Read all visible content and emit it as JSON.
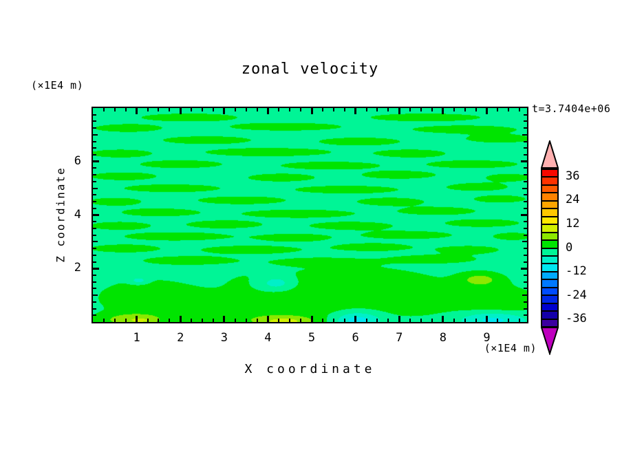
{
  "window": {
    "background": "#ffffff"
  },
  "chart_data": {
    "type": "filled_contour",
    "title": "zonal velocity",
    "time_label": "t=3.7404e+06",
    "x_axis": {
      "title": "X coordinate",
      "units_label": "(×1E4 m)",
      "min": 0,
      "max": 9.92,
      "labeled_ticks": [
        1,
        2,
        3,
        4,
        5,
        6,
        7,
        8,
        9
      ],
      "minor_tick_step": 0.25
    },
    "z_axis": {
      "title": "Z coordinate",
      "units_label": "(×1E4 m)",
      "min": 0,
      "max": 8,
      "labeled_ticks": [
        2,
        4,
        6
      ],
      "medium_ticks": [
        1,
        3,
        5,
        7
      ],
      "minor_tick_step": 0.25
    },
    "colorbar": {
      "level_min": -40,
      "level_max": 40,
      "level_step": 4,
      "labels": [
        36,
        24,
        12,
        0,
        -12,
        -24,
        -36
      ],
      "segment_colors_low_to_high": [
        "#3c00a0",
        "#1400aa",
        "#0000cd",
        "#0028e6",
        "#004cff",
        "#0078ff",
        "#00aaff",
        "#00e6f0",
        "#00f0c8",
        "#00f596",
        "#00e400",
        "#8ce800",
        "#d2f000",
        "#ffe800",
        "#ffc800",
        "#ffa500",
        "#ff8200",
        "#ff5a00",
        "#ff3200",
        "#f80800"
      ],
      "under_color": "#be00be",
      "over_color": "#ffb0b0",
      "outline_color": "#000000"
    },
    "field": {
      "description": "velocity field = base_value + sum of gaussian features; color = contour band of value",
      "base_value": -2,
      "feature_format": [
        "x",
        "z",
        "x_radius",
        "z_radius",
        "amplitude"
      ],
      "features": [
        [
          2.2,
          7.65,
          1.3,
          0.17,
          4.0
        ],
        [
          7.6,
          7.65,
          1.5,
          0.17,
          4.0
        ],
        [
          0.8,
          7.25,
          0.9,
          0.17,
          4.0
        ],
        [
          4.4,
          7.3,
          1.5,
          0.17,
          4.0
        ],
        [
          8.5,
          7.2,
          1.4,
          0.17,
          4.0
        ],
        [
          2.6,
          6.8,
          1.2,
          0.17,
          4.0
        ],
        [
          6.1,
          6.75,
          1.1,
          0.17,
          4.0
        ],
        [
          9.3,
          6.85,
          0.9,
          0.17,
          4.0
        ],
        [
          0.6,
          6.3,
          0.8,
          0.17,
          4.0
        ],
        [
          4.0,
          6.35,
          1.7,
          0.18,
          4.0
        ],
        [
          7.3,
          6.3,
          0.9,
          0.17,
          4.0
        ],
        [
          2.0,
          5.9,
          1.1,
          0.17,
          4.0
        ],
        [
          5.4,
          5.85,
          1.3,
          0.17,
          4.0
        ],
        [
          8.7,
          5.9,
          1.2,
          0.17,
          4.0
        ],
        [
          0.7,
          5.45,
          0.9,
          0.17,
          4.0
        ],
        [
          4.3,
          5.4,
          0.9,
          0.17,
          4.0
        ],
        [
          7.0,
          5.5,
          1.0,
          0.17,
          4.0
        ],
        [
          9.5,
          5.4,
          0.6,
          0.16,
          4.0
        ],
        [
          1.8,
          5.0,
          1.3,
          0.17,
          4.0
        ],
        [
          5.8,
          4.95,
          1.4,
          0.17,
          4.0
        ],
        [
          8.8,
          5.05,
          0.8,
          0.17,
          4.0
        ],
        [
          0.5,
          4.5,
          0.7,
          0.17,
          4.0
        ],
        [
          3.4,
          4.55,
          1.2,
          0.17,
          4.0
        ],
        [
          6.8,
          4.5,
          0.9,
          0.17,
          4.0
        ],
        [
          9.3,
          4.6,
          0.7,
          0.16,
          4.0
        ],
        [
          1.5,
          4.1,
          1.0,
          0.17,
          4.0
        ],
        [
          4.7,
          4.05,
          1.5,
          0.18,
          4.0
        ],
        [
          7.9,
          4.15,
          1.0,
          0.17,
          4.0
        ],
        [
          0.6,
          3.6,
          0.8,
          0.17,
          4.0
        ],
        [
          3.0,
          3.65,
          1.0,
          0.17,
          4.0
        ],
        [
          5.9,
          3.6,
          1.1,
          0.17,
          4.0
        ],
        [
          8.9,
          3.7,
          1.0,
          0.17,
          4.0
        ],
        [
          1.9,
          3.2,
          1.4,
          0.18,
          4.0
        ],
        [
          4.6,
          3.15,
          0.9,
          0.17,
          4.0
        ],
        [
          7.2,
          3.25,
          1.2,
          0.17,
          4.0
        ],
        [
          9.6,
          3.2,
          0.5,
          0.16,
          4.0
        ],
        [
          0.7,
          2.75,
          0.9,
          0.17,
          4.0
        ],
        [
          3.6,
          2.7,
          1.3,
          0.18,
          4.0
        ],
        [
          6.4,
          2.8,
          1.0,
          0.17,
          4.0
        ],
        [
          8.6,
          2.7,
          0.8,
          0.17,
          4.0
        ],
        [
          2.2,
          2.3,
          1.2,
          0.18,
          4.0
        ],
        [
          5.2,
          2.25,
          1.1,
          0.17,
          4.0
        ],
        [
          7.8,
          2.35,
          1.1,
          0.17,
          4.0
        ],
        [
          1.3,
          0.9,
          1.3,
          0.75,
          4.5
        ],
        [
          2.9,
          0.45,
          1.0,
          0.5,
          4.0
        ],
        [
          4.6,
          0.75,
          1.3,
          0.7,
          5.0
        ],
        [
          6.0,
          1.6,
          1.2,
          0.5,
          3.5
        ],
        [
          7.2,
          0.95,
          1.3,
          0.8,
          4.5
        ],
        [
          9.3,
          0.7,
          1.0,
          0.7,
          4.5
        ],
        [
          4.1,
          1.55,
          1.0,
          0.45,
          3.5
        ],
        [
          4.2,
          1.45,
          0.5,
          0.33,
          -8.5
        ],
        [
          1.05,
          1.55,
          0.2,
          0.13,
          -5.5
        ],
        [
          8.85,
          1.6,
          0.5,
          0.28,
          6.5
        ],
        [
          6.05,
          0.08,
          0.5,
          0.28,
          -9.0
        ],
        [
          9.15,
          0.1,
          0.75,
          0.3,
          -9.0
        ],
        [
          0.9,
          0.08,
          0.75,
          0.25,
          8.0
        ],
        [
          1.15,
          0.05,
          0.25,
          0.1,
          2.5
        ],
        [
          4.35,
          0.02,
          0.8,
          0.22,
          8.5
        ],
        [
          4.4,
          0.0,
          0.35,
          0.12,
          2.0
        ]
      ]
    }
  }
}
